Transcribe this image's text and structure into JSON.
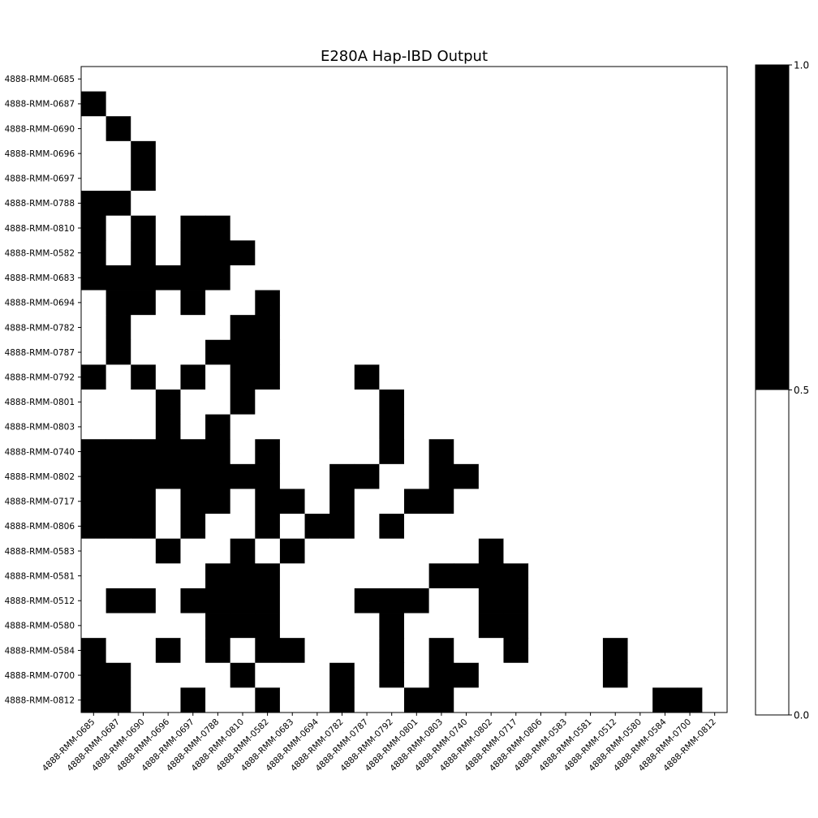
{
  "chart_data": {
    "type": "heatmap",
    "title": "E280A Hap-IBD Output",
    "xlabel": "",
    "ylabel": "",
    "labels": [
      "4888-RMM-0685",
      "4888-RMM-0687",
      "4888-RMM-0690",
      "4888-RMM-0696",
      "4888-RMM-0697",
      "4888-RMM-0788",
      "4888-RMM-0810",
      "4888-RMM-0582",
      "4888-RMM-0683",
      "4888-RMM-0694",
      "4888-RMM-0782",
      "4888-RMM-0787",
      "4888-RMM-0792",
      "4888-RMM-0801",
      "4888-RMM-0803",
      "4888-RMM-0740",
      "4888-RMM-0802",
      "4888-RMM-0717",
      "4888-RMM-0806",
      "4888-RMM-0583",
      "4888-RMM-0581",
      "4888-RMM-0512",
      "4888-RMM-0580",
      "4888-RMM-0584",
      "4888-RMM-0700",
      "4888-RMM-0812"
    ],
    "matrix": [
      [
        0,
        0,
        0,
        0,
        0,
        0,
        0,
        0,
        0,
        0,
        0,
        0,
        0,
        0,
        0,
        0,
        0,
        0,
        0,
        0,
        0,
        0,
        0,
        0,
        0,
        0
      ],
      [
        1,
        0,
        0,
        0,
        0,
        0,
        0,
        0,
        0,
        0,
        0,
        0,
        0,
        0,
        0,
        0,
        0,
        0,
        0,
        0,
        0,
        0,
        0,
        0,
        0,
        0
      ],
      [
        0,
        1,
        0,
        0,
        0,
        0,
        0,
        0,
        0,
        0,
        0,
        0,
        0,
        0,
        0,
        0,
        0,
        0,
        0,
        0,
        0,
        0,
        0,
        0,
        0,
        0
      ],
      [
        0,
        0,
        1,
        0,
        0,
        0,
        0,
        0,
        0,
        0,
        0,
        0,
        0,
        0,
        0,
        0,
        0,
        0,
        0,
        0,
        0,
        0,
        0,
        0,
        0,
        0
      ],
      [
        0,
        0,
        1,
        0,
        0,
        0,
        0,
        0,
        0,
        0,
        0,
        0,
        0,
        0,
        0,
        0,
        0,
        0,
        0,
        0,
        0,
        0,
        0,
        0,
        0,
        0
      ],
      [
        1,
        1,
        0,
        0,
        0,
        0,
        0,
        0,
        0,
        0,
        0,
        0,
        0,
        0,
        0,
        0,
        0,
        0,
        0,
        0,
        0,
        0,
        0,
        0,
        0,
        0
      ],
      [
        1,
        0,
        1,
        0,
        1,
        1,
        0,
        0,
        0,
        0,
        0,
        0,
        0,
        0,
        0,
        0,
        0,
        0,
        0,
        0,
        0,
        0,
        0,
        0,
        0,
        0
      ],
      [
        1,
        0,
        1,
        0,
        1,
        1,
        1,
        0,
        0,
        0,
        0,
        0,
        0,
        0,
        0,
        0,
        0,
        0,
        0,
        0,
        0,
        0,
        0,
        0,
        0,
        0
      ],
      [
        1,
        1,
        1,
        1,
        1,
        1,
        0,
        0,
        0,
        0,
        0,
        0,
        0,
        0,
        0,
        0,
        0,
        0,
        0,
        0,
        0,
        0,
        0,
        0,
        0,
        0
      ],
      [
        0,
        1,
        1,
        0,
        1,
        0,
        0,
        1,
        0,
        0,
        0,
        0,
        0,
        0,
        0,
        0,
        0,
        0,
        0,
        0,
        0,
        0,
        0,
        0,
        0,
        0
      ],
      [
        0,
        1,
        0,
        0,
        0,
        0,
        1,
        1,
        0,
        0,
        0,
        0,
        0,
        0,
        0,
        0,
        0,
        0,
        0,
        0,
        0,
        0,
        0,
        0,
        0,
        0
      ],
      [
        0,
        1,
        0,
        0,
        0,
        1,
        1,
        1,
        0,
        0,
        0,
        0,
        0,
        0,
        0,
        0,
        0,
        0,
        0,
        0,
        0,
        0,
        0,
        0,
        0,
        0
      ],
      [
        1,
        0,
        1,
        0,
        1,
        0,
        1,
        1,
        0,
        0,
        0,
        1,
        0,
        0,
        0,
        0,
        0,
        0,
        0,
        0,
        0,
        0,
        0,
        0,
        0,
        0
      ],
      [
        0,
        0,
        0,
        1,
        0,
        0,
        1,
        0,
        0,
        0,
        0,
        0,
        1,
        0,
        0,
        0,
        0,
        0,
        0,
        0,
        0,
        0,
        0,
        0,
        0,
        0
      ],
      [
        0,
        0,
        0,
        1,
        0,
        1,
        0,
        0,
        0,
        0,
        0,
        0,
        1,
        0,
        0,
        0,
        0,
        0,
        0,
        0,
        0,
        0,
        0,
        0,
        0,
        0
      ],
      [
        1,
        1,
        1,
        1,
        1,
        1,
        0,
        1,
        0,
        0,
        0,
        0,
        1,
        0,
        1,
        0,
        0,
        0,
        0,
        0,
        0,
        0,
        0,
        0,
        0,
        0
      ],
      [
        1,
        1,
        1,
        1,
        1,
        1,
        1,
        1,
        0,
        0,
        1,
        1,
        0,
        0,
        1,
        1,
        0,
        0,
        0,
        0,
        0,
        0,
        0,
        0,
        0,
        0
      ],
      [
        1,
        1,
        1,
        0,
        1,
        1,
        0,
        1,
        1,
        0,
        1,
        0,
        0,
        1,
        1,
        0,
        0,
        0,
        0,
        0,
        0,
        0,
        0,
        0,
        0,
        0
      ],
      [
        1,
        1,
        1,
        0,
        1,
        0,
        0,
        1,
        0,
        1,
        1,
        0,
        1,
        0,
        0,
        0,
        0,
        0,
        0,
        0,
        0,
        0,
        0,
        0,
        0,
        0
      ],
      [
        0,
        0,
        0,
        1,
        0,
        0,
        1,
        0,
        1,
        0,
        0,
        0,
        0,
        0,
        0,
        0,
        1,
        0,
        0,
        0,
        0,
        0,
        0,
        0,
        0,
        0
      ],
      [
        0,
        0,
        0,
        0,
        0,
        1,
        1,
        1,
        0,
        0,
        0,
        0,
        0,
        0,
        1,
        1,
        1,
        1,
        0,
        0,
        0,
        0,
        0,
        0,
        0,
        0
      ],
      [
        0,
        1,
        1,
        0,
        1,
        1,
        1,
        1,
        0,
        0,
        0,
        1,
        1,
        1,
        0,
        0,
        1,
        1,
        0,
        0,
        0,
        0,
        0,
        0,
        0,
        0
      ],
      [
        0,
        0,
        0,
        0,
        0,
        1,
        1,
        1,
        0,
        0,
        0,
        0,
        1,
        0,
        0,
        0,
        1,
        1,
        0,
        0,
        0,
        0,
        0,
        0,
        0,
        0
      ],
      [
        1,
        0,
        0,
        1,
        0,
        1,
        0,
        1,
        1,
        0,
        0,
        0,
        1,
        0,
        1,
        0,
        0,
        1,
        0,
        0,
        0,
        1,
        0,
        0,
        0,
        0
      ],
      [
        1,
        1,
        0,
        0,
        0,
        0,
        1,
        0,
        0,
        0,
        1,
        0,
        1,
        0,
        1,
        1,
        0,
        0,
        0,
        0,
        0,
        1,
        0,
        0,
        0,
        0
      ],
      [
        1,
        1,
        0,
        0,
        1,
        0,
        0,
        1,
        0,
        0,
        1,
        0,
        0,
        1,
        1,
        0,
        0,
        0,
        0,
        0,
        0,
        0,
        0,
        1,
        1,
        0
      ]
    ],
    "colorbar": {
      "ticks": [
        "0.0",
        "0.5",
        "1.0"
      ],
      "range": [
        0,
        1
      ],
      "threshold": 0.5,
      "low_color": "#ffffff",
      "high_color": "#000000"
    }
  }
}
